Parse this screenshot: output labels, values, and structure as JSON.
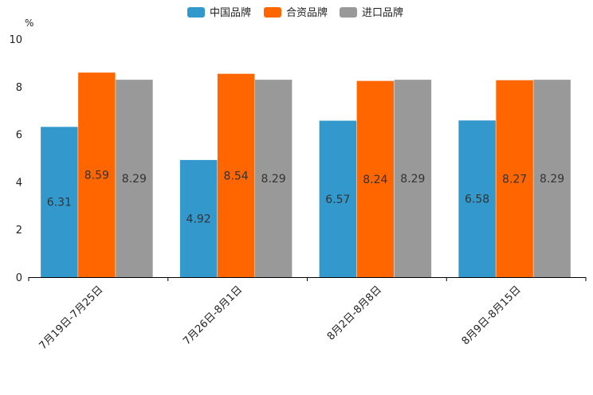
{
  "chart_data": {
    "type": "bar",
    "unit": "%",
    "categories": [
      "7月19日-7月25日",
      "7月26日-8月1日",
      "8月2日-8月8日",
      "8月9日-8月15日"
    ],
    "series": [
      {
        "name": "中国品牌",
        "color": "#3399cc",
        "values": [
          6.31,
          4.92,
          6.57,
          6.58
        ]
      },
      {
        "name": "合资品牌",
        "color": "#ff6600",
        "values": [
          8.59,
          8.54,
          8.24,
          8.27
        ]
      },
      {
        "name": "进口品牌",
        "color": "#999999",
        "values": [
          8.29,
          8.29,
          8.29,
          8.29
        ]
      }
    ],
    "ylim": [
      0,
      10
    ],
    "yticks": [
      0,
      2,
      4,
      6,
      8,
      10
    ],
    "legend_position": "top-center",
    "grid": false
  }
}
